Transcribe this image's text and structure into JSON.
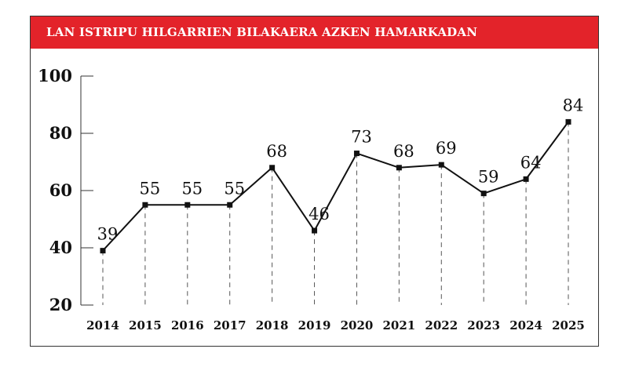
{
  "chart_data": {
    "type": "line",
    "title": "LAN ISTRIPU HILGARRIEN BILAKAERA AZKEN HAMARKADAN",
    "categories": [
      "2014",
      "2015",
      "2016",
      "2017",
      "2018",
      "2019",
      "2020",
      "2021",
      "2022",
      "2023",
      "2024",
      "2025"
    ],
    "values": [
      39,
      55,
      55,
      55,
      68,
      46,
      73,
      68,
      69,
      59,
      64,
      84
    ],
    "ylim": [
      20,
      100
    ],
    "yticks": [
      20,
      40,
      60,
      80,
      100
    ],
    "xlabel": "",
    "ylabel": "",
    "grid": false,
    "colors": {
      "banner": "#e3232a",
      "line": "#111111"
    }
  }
}
